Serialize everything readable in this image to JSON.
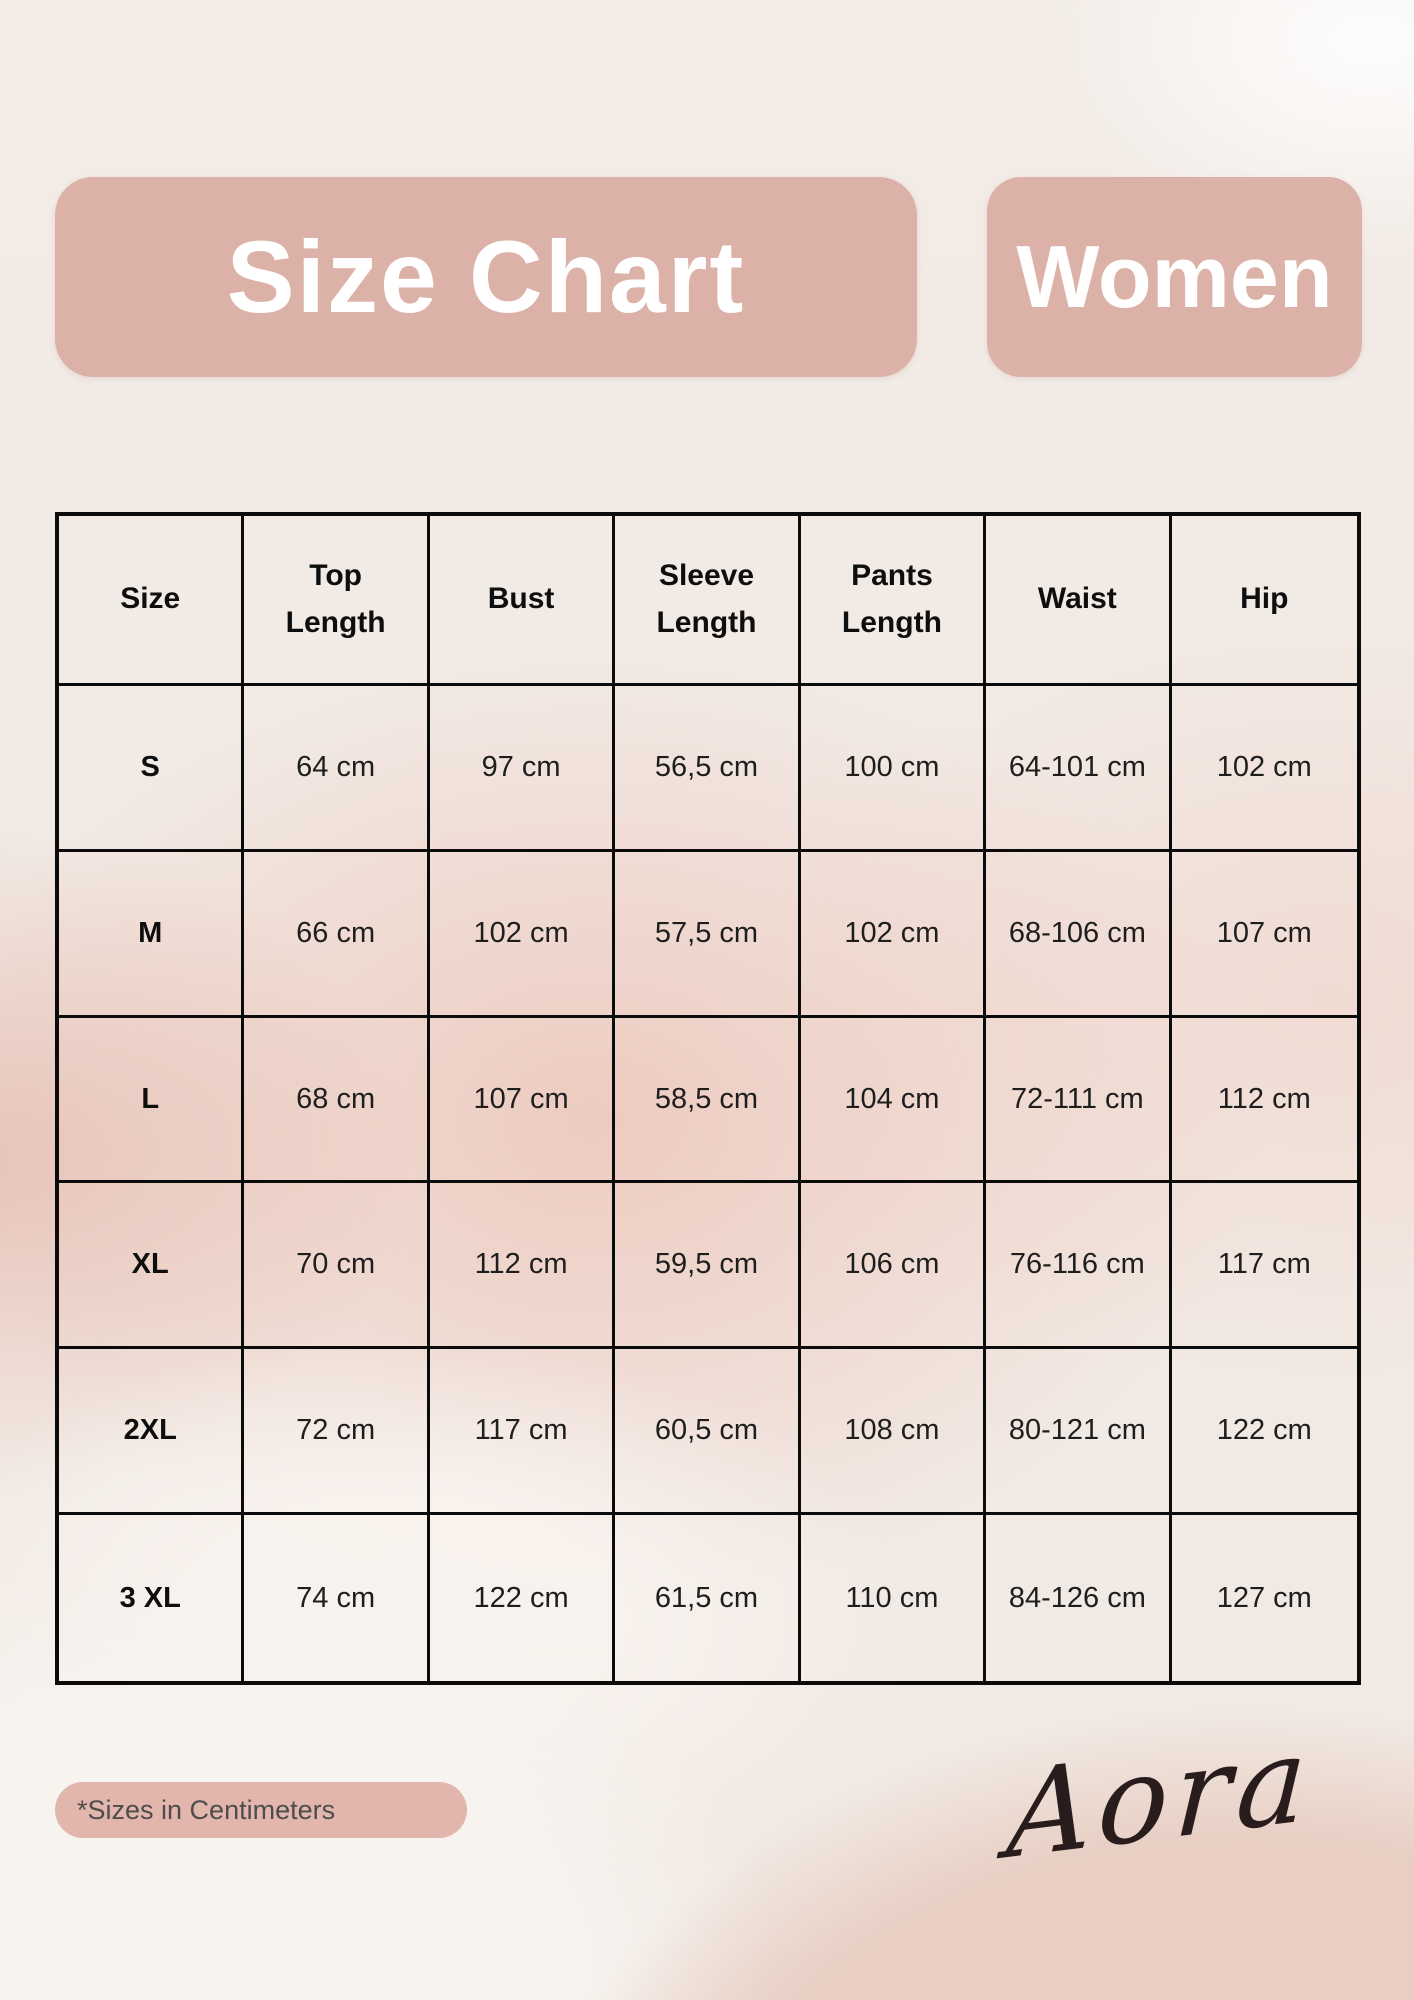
{
  "header": {
    "title": "Size Chart",
    "category": "Women"
  },
  "table": {
    "columns": [
      "Size",
      "Top Length",
      "Bust",
      "Sleeve Length",
      "Pants Length",
      "Waist",
      "Hip"
    ],
    "rows": [
      [
        "S",
        "64 cm",
        "97 cm",
        "56,5 cm",
        "100 cm",
        "64-101 cm",
        "102 cm"
      ],
      [
        "M",
        "66 cm",
        "102 cm",
        "57,5 cm",
        "102 cm",
        "68-106 cm",
        "107 cm"
      ],
      [
        "L",
        "68 cm",
        "107 cm",
        "58,5 cm",
        "104 cm",
        "72-111 cm",
        "112 cm"
      ],
      [
        "XL",
        "70 cm",
        "112 cm",
        "59,5 cm",
        "106 cm",
        "76-116 cm",
        "117 cm"
      ],
      [
        "2XL",
        "72 cm",
        "117 cm",
        "60,5 cm",
        "108 cm",
        "80-121 cm",
        "122 cm"
      ],
      [
        "3 XL",
        "74 cm",
        "122 cm",
        "61,5 cm",
        "110 cm",
        "84-126 cm",
        "127 cm"
      ]
    ]
  },
  "footer": {
    "note": "*Sizes in Centimeters",
    "brand": "Aora"
  },
  "colors": {
    "badge_background": "#dcb2a8",
    "badge_text": "#ffffff",
    "table_border": "#0b0b0b",
    "note_background": "#e2b6ac",
    "note_text": "#4d4d4d",
    "signature_ink": "#281c1d"
  }
}
